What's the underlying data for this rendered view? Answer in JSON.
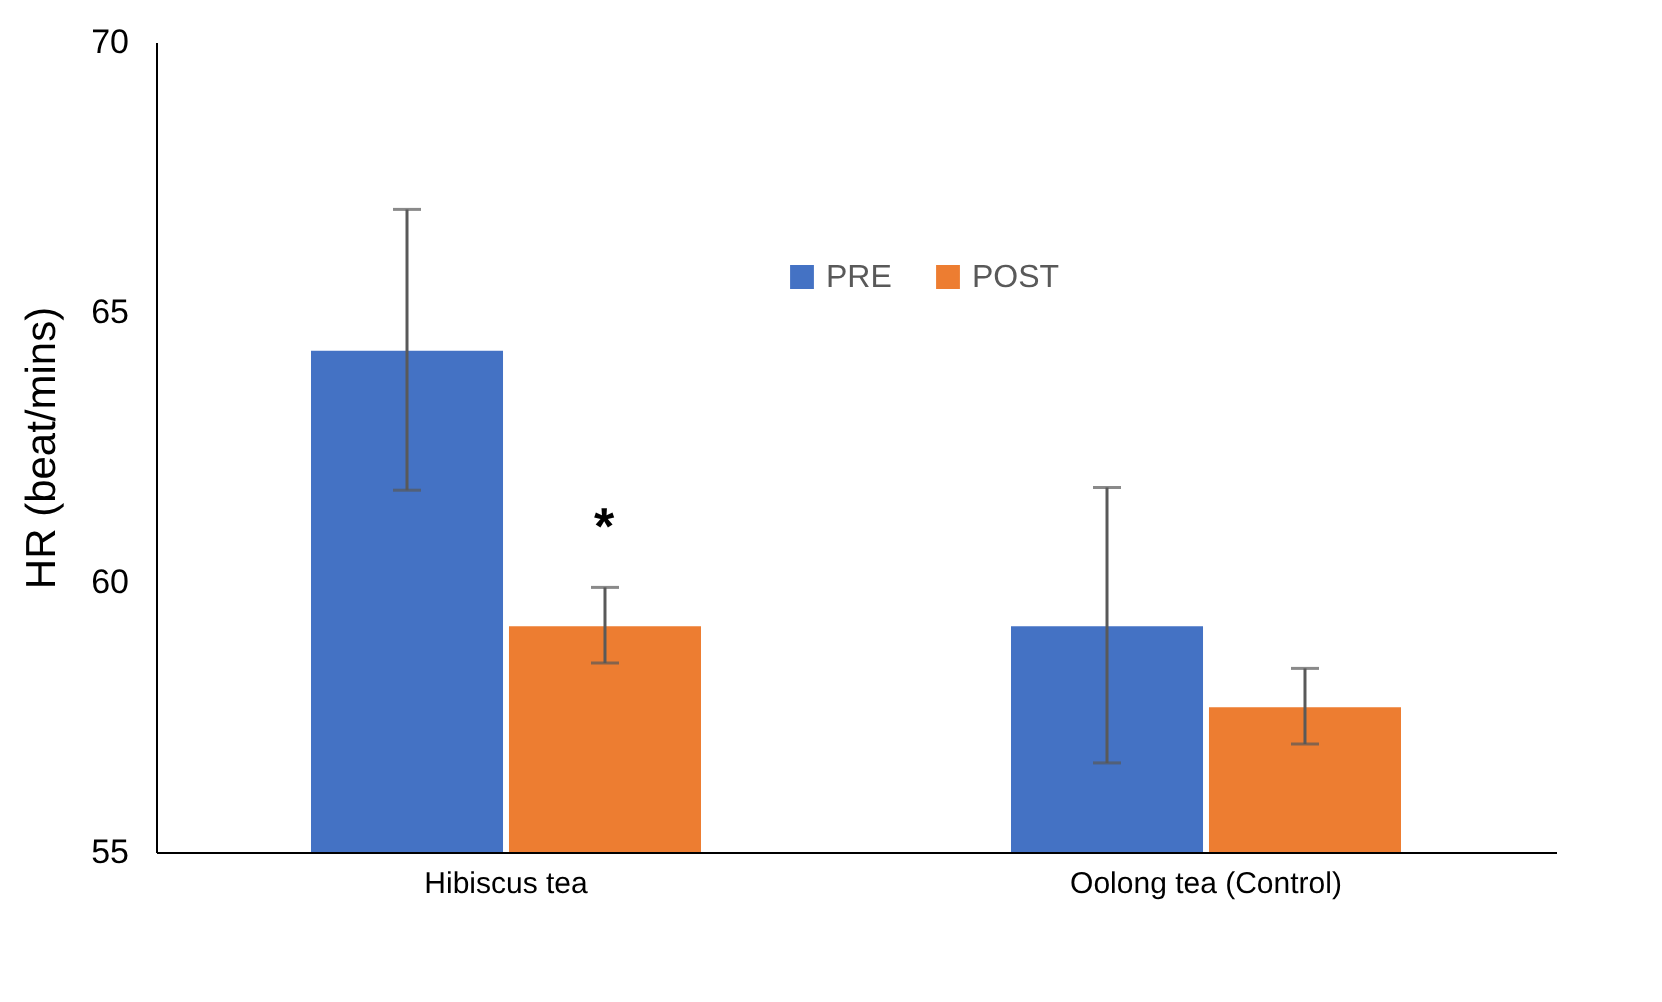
{
  "chart_data": {
    "type": "bar",
    "ylabel": "HR (beat/mins)",
    "categories": [
      "Hibiscus tea",
      "Oolong tea (Control)"
    ],
    "series": [
      {
        "name": "PRE",
        "color": "#4472c4",
        "values": [
          64.3,
          59.2
        ],
        "errors": [
          2.6,
          2.55
        ]
      },
      {
        "name": "POST",
        "color": "#ed7d31",
        "values": [
          59.2,
          57.7
        ],
        "errors": [
          0.7,
          0.7
        ]
      }
    ],
    "ylim": [
      55,
      70
    ],
    "yticks": [
      55,
      60,
      65,
      70
    ],
    "grid": false,
    "legend": "top",
    "annotations": [
      {
        "text": "*",
        "x": "Hibiscus tea",
        "y": 61
      }
    ]
  }
}
